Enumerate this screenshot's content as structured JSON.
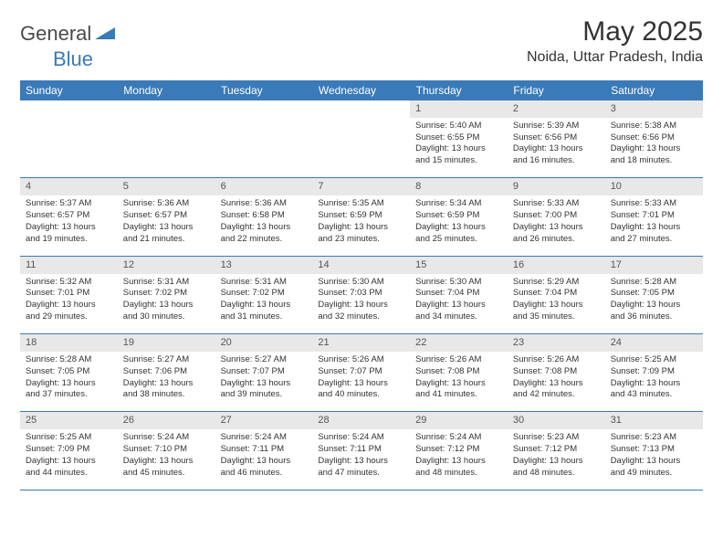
{
  "brand": {
    "general": "General",
    "blue": "Blue"
  },
  "title": "May 2025",
  "location": "Noida, Uttar Pradesh, India",
  "colors": {
    "header_bg": "#3a7ab8",
    "daynum_bg": "#e8e8e8",
    "border": "#3a7ab8",
    "text": "#333333",
    "white": "#ffffff"
  },
  "dayHeaders": [
    "Sunday",
    "Monday",
    "Tuesday",
    "Wednesday",
    "Thursday",
    "Friday",
    "Saturday"
  ],
  "weeks": [
    {
      "nums": [
        "",
        "",
        "",
        "",
        "1",
        "2",
        "3"
      ],
      "cells": [
        null,
        null,
        null,
        null,
        {
          "sr": "5:40 AM",
          "ss": "6:55 PM",
          "dl": "13 hours and 15 minutes."
        },
        {
          "sr": "5:39 AM",
          "ss": "6:56 PM",
          "dl": "13 hours and 16 minutes."
        },
        {
          "sr": "5:38 AM",
          "ss": "6:56 PM",
          "dl": "13 hours and 18 minutes."
        }
      ]
    },
    {
      "nums": [
        "4",
        "5",
        "6",
        "7",
        "8",
        "9",
        "10"
      ],
      "cells": [
        {
          "sr": "5:37 AM",
          "ss": "6:57 PM",
          "dl": "13 hours and 19 minutes."
        },
        {
          "sr": "5:36 AM",
          "ss": "6:57 PM",
          "dl": "13 hours and 21 minutes."
        },
        {
          "sr": "5:36 AM",
          "ss": "6:58 PM",
          "dl": "13 hours and 22 minutes."
        },
        {
          "sr": "5:35 AM",
          "ss": "6:59 PM",
          "dl": "13 hours and 23 minutes."
        },
        {
          "sr": "5:34 AM",
          "ss": "6:59 PM",
          "dl": "13 hours and 25 minutes."
        },
        {
          "sr": "5:33 AM",
          "ss": "7:00 PM",
          "dl": "13 hours and 26 minutes."
        },
        {
          "sr": "5:33 AM",
          "ss": "7:01 PM",
          "dl": "13 hours and 27 minutes."
        }
      ]
    },
    {
      "nums": [
        "11",
        "12",
        "13",
        "14",
        "15",
        "16",
        "17"
      ],
      "cells": [
        {
          "sr": "5:32 AM",
          "ss": "7:01 PM",
          "dl": "13 hours and 29 minutes."
        },
        {
          "sr": "5:31 AM",
          "ss": "7:02 PM",
          "dl": "13 hours and 30 minutes."
        },
        {
          "sr": "5:31 AM",
          "ss": "7:02 PM",
          "dl": "13 hours and 31 minutes."
        },
        {
          "sr": "5:30 AM",
          "ss": "7:03 PM",
          "dl": "13 hours and 32 minutes."
        },
        {
          "sr": "5:30 AM",
          "ss": "7:04 PM",
          "dl": "13 hours and 34 minutes."
        },
        {
          "sr": "5:29 AM",
          "ss": "7:04 PM",
          "dl": "13 hours and 35 minutes."
        },
        {
          "sr": "5:28 AM",
          "ss": "7:05 PM",
          "dl": "13 hours and 36 minutes."
        }
      ]
    },
    {
      "nums": [
        "18",
        "19",
        "20",
        "21",
        "22",
        "23",
        "24"
      ],
      "cells": [
        {
          "sr": "5:28 AM",
          "ss": "7:05 PM",
          "dl": "13 hours and 37 minutes."
        },
        {
          "sr": "5:27 AM",
          "ss": "7:06 PM",
          "dl": "13 hours and 38 minutes."
        },
        {
          "sr": "5:27 AM",
          "ss": "7:07 PM",
          "dl": "13 hours and 39 minutes."
        },
        {
          "sr": "5:26 AM",
          "ss": "7:07 PM",
          "dl": "13 hours and 40 minutes."
        },
        {
          "sr": "5:26 AM",
          "ss": "7:08 PM",
          "dl": "13 hours and 41 minutes."
        },
        {
          "sr": "5:26 AM",
          "ss": "7:08 PM",
          "dl": "13 hours and 42 minutes."
        },
        {
          "sr": "5:25 AM",
          "ss": "7:09 PM",
          "dl": "13 hours and 43 minutes."
        }
      ]
    },
    {
      "nums": [
        "25",
        "26",
        "27",
        "28",
        "29",
        "30",
        "31"
      ],
      "cells": [
        {
          "sr": "5:25 AM",
          "ss": "7:09 PM",
          "dl": "13 hours and 44 minutes."
        },
        {
          "sr": "5:24 AM",
          "ss": "7:10 PM",
          "dl": "13 hours and 45 minutes."
        },
        {
          "sr": "5:24 AM",
          "ss": "7:11 PM",
          "dl": "13 hours and 46 minutes."
        },
        {
          "sr": "5:24 AM",
          "ss": "7:11 PM",
          "dl": "13 hours and 47 minutes."
        },
        {
          "sr": "5:24 AM",
          "ss": "7:12 PM",
          "dl": "13 hours and 48 minutes."
        },
        {
          "sr": "5:23 AM",
          "ss": "7:12 PM",
          "dl": "13 hours and 48 minutes."
        },
        {
          "sr": "5:23 AM",
          "ss": "7:13 PM",
          "dl": "13 hours and 49 minutes."
        }
      ]
    }
  ],
  "labels": {
    "sunrise": "Sunrise: ",
    "sunset": "Sunset: ",
    "daylight": "Daylight: "
  }
}
